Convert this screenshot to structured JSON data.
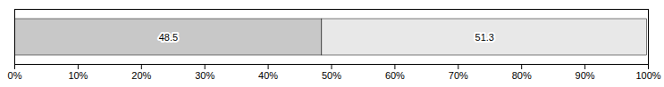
{
  "chart_data": {
    "type": "bar",
    "orientation": "horizontal",
    "stacked": true,
    "values": [
      48.5,
      51.3
    ],
    "value_labels": [
      "48.5",
      "51.3"
    ],
    "colors": [
      "#c8c8c8",
      "#e8e8e8"
    ],
    "data_labels": true,
    "xlim": [
      0,
      100
    ],
    "xticks": [
      {
        "value": 0,
        "label": "0%"
      },
      {
        "value": 10,
        "label": "10%"
      },
      {
        "value": 20,
        "label": "20%"
      },
      {
        "value": 30,
        "label": "30%"
      },
      {
        "value": 40,
        "label": "40%"
      },
      {
        "value": 50,
        "label": "50%"
      },
      {
        "value": 60,
        "label": "60%"
      },
      {
        "value": 70,
        "label": "70%"
      },
      {
        "value": 80,
        "label": "80%"
      },
      {
        "value": 90,
        "label": "90%"
      },
      {
        "value": 100,
        "label": "100%"
      }
    ]
  }
}
